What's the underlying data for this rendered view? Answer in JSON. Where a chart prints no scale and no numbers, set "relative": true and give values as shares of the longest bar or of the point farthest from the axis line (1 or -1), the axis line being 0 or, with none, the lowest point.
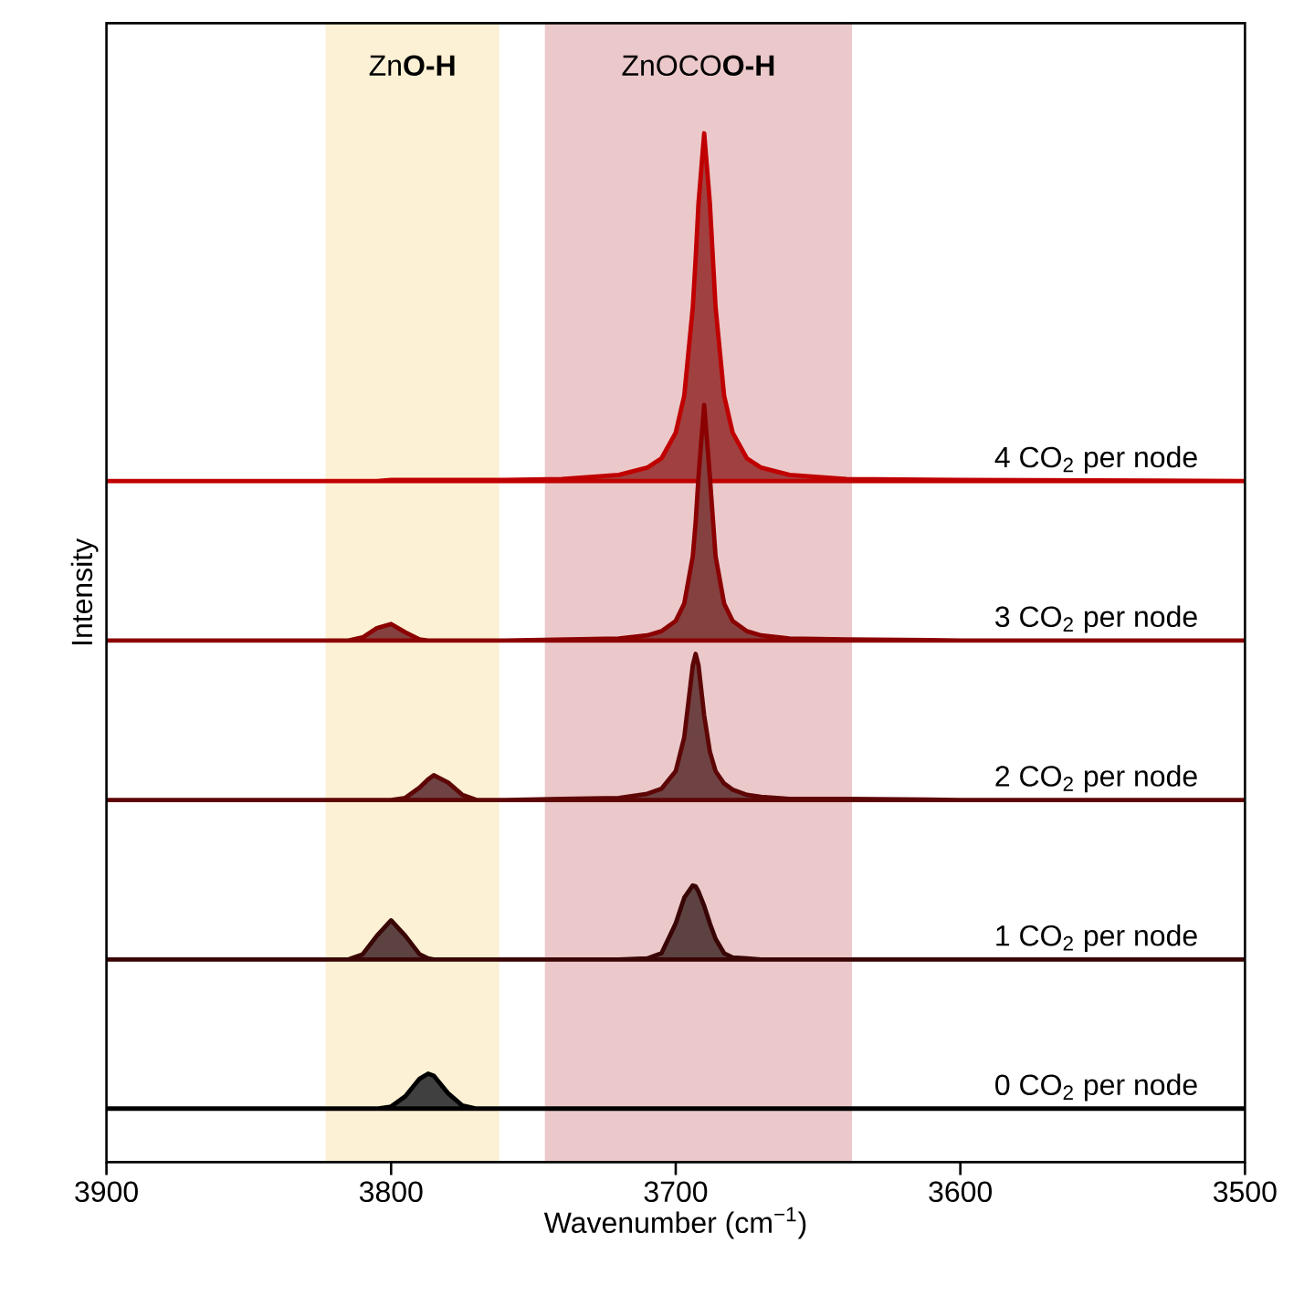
{
  "chart_data": {
    "type": "area",
    "relative": true,
    "xlabel": "Wavenumber (cm$^{−1}$)",
    "ylabel": "Intensity",
    "xlim": [
      3900,
      3500
    ],
    "xticks": [
      3900,
      3800,
      3700,
      3600,
      3500
    ],
    "tick_labels": "x",
    "x": [
      3900,
      3850,
      3830,
      3820,
      3815,
      3810,
      3805,
      3800,
      3795,
      3790,
      3787,
      3785,
      3780,
      3775,
      3770,
      3760,
      3740,
      3720,
      3710,
      3705,
      3700,
      3697,
      3694,
      3693,
      3692,
      3690,
      3688,
      3686,
      3683,
      3680,
      3675,
      3670,
      3660,
      3640,
      3600,
      3500
    ],
    "bands": [
      {
        "axis": "x",
        "from": 3823,
        "to": 3762,
        "label": "Zn**O-H**",
        "color": "#fcf1d4"
      },
      {
        "axis": "x",
        "from": 3746,
        "to": 3638,
        "label": "ZnOCO**O-H**",
        "color": "#ebc9ca"
      }
    ],
    "series": [
      {
        "name": "0 CO$_{2}$ per node",
        "color": "#000000",
        "values": [
          0.052,
          0.052,
          0.052,
          0.052,
          0.052,
          0.052,
          0.052,
          0.054,
          0.064,
          0.081,
          0.086,
          0.084,
          0.067,
          0.055,
          0.052,
          0.052,
          0.052,
          0.052,
          0.052,
          0.052,
          0.052,
          0.052,
          0.052,
          0.052,
          0.052,
          0.052,
          0.052,
          0.052,
          0.052,
          0.052,
          0.052,
          0.052,
          0.052,
          0.052,
          0.052,
          0.052
        ]
      },
      {
        "name": "1 CO$_{2}$ per node",
        "color": "#3a0505",
        "values": [
          0.197,
          0.197,
          0.197,
          0.197,
          0.197,
          0.202,
          0.22,
          0.235,
          0.22,
          0.202,
          0.198,
          0.197,
          0.197,
          0.197,
          0.197,
          0.197,
          0.197,
          0.197,
          0.198,
          0.203,
          0.232,
          0.257,
          0.269,
          0.268,
          0.263,
          0.249,
          0.232,
          0.217,
          0.203,
          0.199,
          0.198,
          0.197,
          0.197,
          0.197,
          0.197,
          0.197
        ]
      },
      {
        "name": "2 CO$_{2}$ per node",
        "color": "#5e0606",
        "values": [
          0.352,
          0.352,
          0.352,
          0.352,
          0.352,
          0.352,
          0.352,
          0.352,
          0.354,
          0.364,
          0.372,
          0.376,
          0.369,
          0.357,
          0.352,
          0.352,
          0.353,
          0.354,
          0.358,
          0.363,
          0.38,
          0.413,
          0.483,
          0.494,
          0.483,
          0.434,
          0.399,
          0.38,
          0.368,
          0.362,
          0.357,
          0.355,
          0.353,
          0.353,
          0.352,
          0.352
        ]
      },
      {
        "name": "3 CO$_{2}$ per node",
        "color": "#8b0000",
        "values": [
          0.507,
          0.507,
          0.507,
          0.507,
          0.507,
          0.51,
          0.519,
          0.523,
          0.515,
          0.508,
          0.507,
          0.507,
          0.507,
          0.507,
          0.507,
          0.507,
          0.508,
          0.509,
          0.512,
          0.516,
          0.526,
          0.543,
          0.589,
          0.622,
          0.666,
          0.736,
          0.666,
          0.589,
          0.543,
          0.526,
          0.516,
          0.512,
          0.509,
          0.508,
          0.507,
          0.507
        ]
      },
      {
        "name": "4 CO$_{2}$ per node",
        "color": "#c00000",
        "values": [
          0.662,
          0.662,
          0.662,
          0.662,
          0.662,
          0.662,
          0.662,
          0.663,
          0.663,
          0.663,
          0.663,
          0.663,
          0.663,
          0.663,
          0.663,
          0.663,
          0.664,
          0.668,
          0.675,
          0.684,
          0.709,
          0.745,
          0.831,
          0.878,
          0.932,
          1.0,
          0.932,
          0.831,
          0.745,
          0.709,
          0.684,
          0.675,
          0.668,
          0.664,
          0.663,
          0.662
        ]
      }
    ]
  }
}
